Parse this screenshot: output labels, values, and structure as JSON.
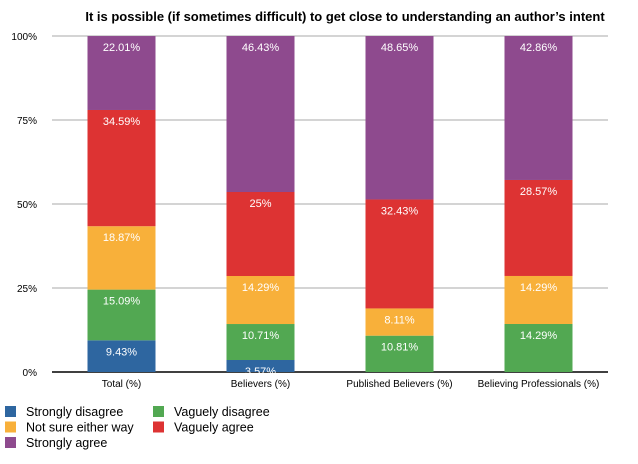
{
  "chart_data": {
    "type": "bar",
    "stacked": true,
    "percent_stacked": true,
    "title": "It is possible (if sometimes difficult) to get close to understanding an author’s intent",
    "categories": [
      "Total (%)",
      "Believers (%)",
      "Published Believers (%)",
      "Believing Professionals (%)"
    ],
    "yticks": [
      "0%",
      "25%",
      "50%",
      "75%",
      "100%"
    ],
    "ylim": [
      0,
      100
    ],
    "grid": true,
    "legend_placement": "bottom-left",
    "series": [
      {
        "name": "Strongly disagree",
        "color": "#2e66a0",
        "values": [
          9.43,
          3.57,
          0,
          0
        ],
        "labels": [
          "9.43%",
          "3.57%",
          "",
          ""
        ]
      },
      {
        "name": "Vaguely disagree",
        "color": "#52a852",
        "values": [
          15.09,
          10.71,
          10.81,
          14.29
        ],
        "labels": [
          "15.09%",
          "10.71%",
          "10.81%",
          "14.29%"
        ]
      },
      {
        "name": "Not sure either way",
        "color": "#f8b03a",
        "values": [
          18.87,
          14.29,
          8.11,
          14.29
        ],
        "labels": [
          "18.87%",
          "14.29%",
          "8.11%",
          "14.29%"
        ]
      },
      {
        "name": "Vaguely agree",
        "color": "#dd3333",
        "values": [
          34.59,
          25,
          32.43,
          28.57
        ],
        "labels": [
          "34.59%",
          "25%",
          "32.43%",
          "28.57%"
        ]
      },
      {
        "name": "Strongly agree",
        "color": "#8e4a8e",
        "values": [
          22.01,
          46.43,
          48.65,
          42.86
        ],
        "labels": [
          "22.01%",
          "46.43%",
          "48.65%",
          "42.86%"
        ]
      }
    ],
    "legend_order": [
      "Strongly disagree",
      "Vaguely disagree",
      "Not sure either way",
      "Vaguely agree",
      "Strongly agree"
    ]
  }
}
